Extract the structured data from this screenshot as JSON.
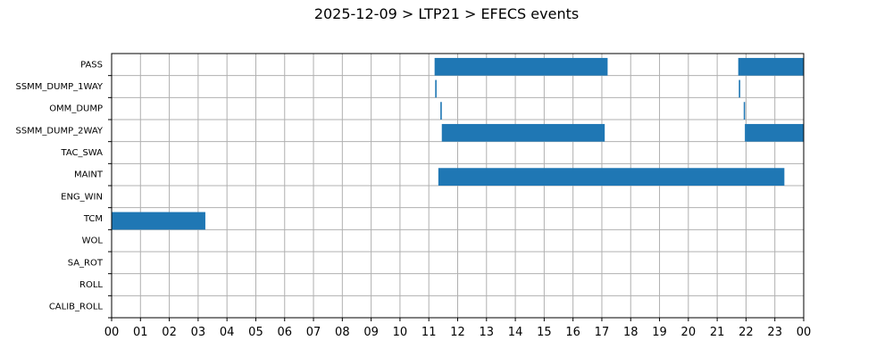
{
  "chart_data": {
    "type": "bar",
    "orientation": "horizontal-timeline",
    "title": "2025-12-09 > LTP21 > EFECS events",
    "xlabel": "",
    "ylabel": "",
    "grid": true,
    "bar_color": "#1f77b4",
    "grid_color": "#b0b0b0",
    "x_ticks": [
      "00",
      "01",
      "02",
      "03",
      "04",
      "05",
      "06",
      "07",
      "08",
      "09",
      "10",
      "11",
      "12",
      "13",
      "14",
      "15",
      "16",
      "17",
      "18",
      "19",
      "20",
      "21",
      "22",
      "23",
      "00"
    ],
    "categories": [
      "PASS",
      "SSMM_DUMP_1WAY",
      "OMM_DUMP",
      "SSMM_DUMP_2WAY",
      "TAC_SWA",
      "MAINT",
      "ENG_WIN",
      "TCM",
      "WOL",
      "SA_ROT",
      "ROLL",
      "CALIB_ROLL"
    ],
    "events": [
      {
        "category": "PASS",
        "start_hour": 11.2,
        "end_hour": 17.2
      },
      {
        "category": "PASS",
        "start_hour": 21.73,
        "end_hour": 24.0
      },
      {
        "category": "SSMM_DUMP_1WAY",
        "start_hour": 11.22,
        "end_hour": 11.27
      },
      {
        "category": "SSMM_DUMP_1WAY",
        "start_hour": 21.75,
        "end_hour": 21.8
      },
      {
        "category": "OMM_DUMP",
        "start_hour": 11.4,
        "end_hour": 11.45
      },
      {
        "category": "OMM_DUMP",
        "start_hour": 21.92,
        "end_hour": 21.96
      },
      {
        "category": "SSMM_DUMP_2WAY",
        "start_hour": 11.45,
        "end_hour": 17.1
      },
      {
        "category": "SSMM_DUMP_2WAY",
        "start_hour": 21.96,
        "end_hour": 24.0
      },
      {
        "category": "MAINT",
        "start_hour": 11.33,
        "end_hour": 23.33
      },
      {
        "category": "TCM",
        "start_hour": 0.0,
        "end_hour": 3.25
      }
    ]
  }
}
